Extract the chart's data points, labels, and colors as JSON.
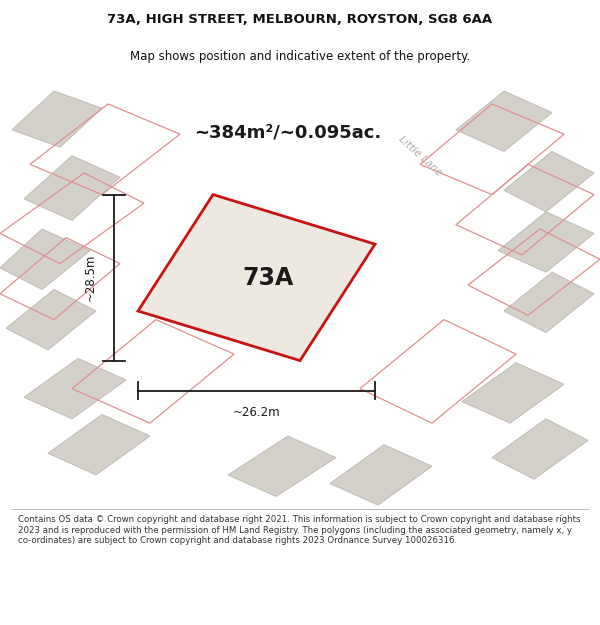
{
  "title": "73A, HIGH STREET, MELBOURN, ROYSTON, SG8 6AA",
  "subtitle": "Map shows position and indicative extent of the property.",
  "area_text": "~384m²/~0.095ac.",
  "label_73A": "73A",
  "dim_width": "~26.2m",
  "dim_height": "~28.5m",
  "street_label": "Little Lane",
  "footer": "Contains OS data © Crown copyright and database right 2021. This information is subject to Crown copyright and database rights 2023 and is reproduced with the permission of HM Land Registry. The polygons (including the associated geometry, namely x, y co-ordinates) are subject to Crown copyright and database rights 2023 Ordnance Survey 100026316.",
  "bg_color": "#f0ede8",
  "road_color": "#ffffff",
  "building_fill": "#d4d0ca",
  "building_stroke": "#c0bcb6",
  "plot_edge_color": "#cc1111",
  "plot_fill": "#ede8e0",
  "dim_line_color": "#1a1a1a",
  "street_label_color": "#b0aca8",
  "footer_color": "#333333",
  "title_color": "#111111",
  "pink_outline": "#e09090"
}
